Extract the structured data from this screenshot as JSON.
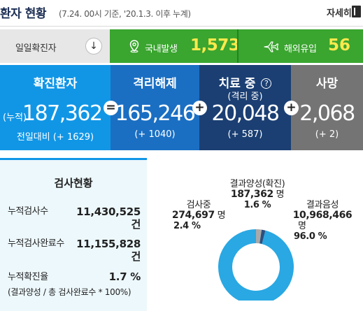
{
  "header": {
    "title": "환자 현황",
    "subtitle": "(7.24. 00시 기준, '20.1.3. 이후 누계)",
    "detail_label": "자세히"
  },
  "daily": {
    "label": "일일확진자",
    "arrow": "↓",
    "domestic_label": "국내발생",
    "domestic_value": "1,573",
    "overseas_label": "해외유입",
    "overseas_value": "56"
  },
  "stats": {
    "confirmed": {
      "title": "확진환자",
      "cum_label": "(누적)",
      "value": "187,362",
      "delta": "전일대비 (+ 1629)"
    },
    "released": {
      "title": "격리해제",
      "value": "165,246",
      "delta": "(+ 1040)"
    },
    "treatment": {
      "title": "치료 중",
      "help": "?",
      "subtitle": "(격리 중)",
      "value": "20,048",
      "delta": "(+ 587)"
    },
    "death": {
      "title": "사망",
      "value": "2,068",
      "delta": "(+ 2)"
    },
    "operators": {
      "equals": "=",
      "plus": "+"
    }
  },
  "tests": {
    "title": "검사현황",
    "rows": [
      {
        "label": "누적검사수",
        "value": "11,430,525",
        "unit": "건"
      },
      {
        "label": "누적검사완료수",
        "value": "11,155,828",
        "unit": "건"
      },
      {
        "label": "누적확진율",
        "value": "1.7 %",
        "unit": ""
      }
    ],
    "note": "(결과양성 / 총 검사완료수 * 100%)"
  },
  "donut": {
    "testing": {
      "label": "검사중",
      "value": "274,697",
      "unit": "명",
      "pct": "2.4 %"
    },
    "positive": {
      "label": "결과양성(확진)",
      "value": "187,362",
      "unit": "명",
      "pct": "1.6 %"
    },
    "negative": {
      "label": "결과음성",
      "value": "10,968,466",
      "unit": "명",
      "pct": "96.0 %"
    },
    "shares": {
      "negative": 96.0,
      "testing": 2.4,
      "positive": 1.6
    },
    "colors": {
      "negative": "#29a8e3",
      "testing": "#a9a9a9",
      "positive": "#2a4f7e"
    }
  },
  "colors": {
    "confirmed": "#1196e6",
    "released": "#1a6fc3",
    "treatment": "#1b3f73",
    "death": "#747474",
    "daily_bar": "#3aa52f",
    "daily_value": "#ffe94d"
  },
  "icons": {
    "domestic": "map-pin-icon",
    "overseas": "airplane-icon",
    "detail": "document-icon",
    "arrow": "arrow-down-icon",
    "help": "question-circle-icon"
  }
}
